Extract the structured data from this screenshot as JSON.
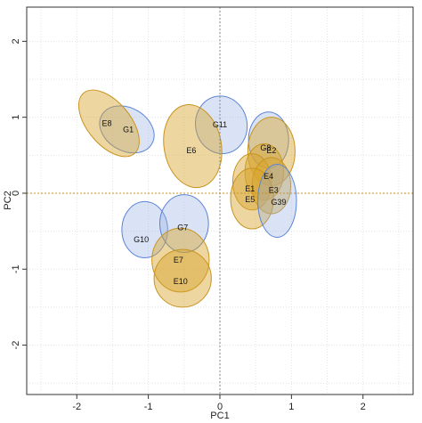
{
  "chart_data": {
    "type": "scatter",
    "title": "",
    "xlabel": "PC1",
    "ylabel": "PC2",
    "xlim": [
      -2.7,
      2.7
    ],
    "ylim": [
      -2.65,
      2.45
    ],
    "xticks": [
      -2,
      -1,
      0,
      1,
      2
    ],
    "yticks": [
      -2,
      -1,
      0,
      1,
      2
    ],
    "grid": true,
    "reference_lines": {
      "x": 0,
      "y": 0
    },
    "colors": {
      "blue_fill": "rgba(150,175,225,0.35)",
      "blue_stroke": "#5b84d6",
      "orange_fill": "rgba(215,165,45,0.45)",
      "orange_stroke": "#c8941f",
      "zero_x_line": "#888888",
      "zero_y_line": "#c8941f",
      "grid": "#e3e3e3"
    },
    "groups": [
      {
        "label": "G1",
        "color": "blue",
        "cx": -1.3,
        "cy": 0.84,
        "rx": 0.3,
        "ry": 0.38,
        "angle": 60
      },
      {
        "label": "E8",
        "color": "orange",
        "cx": -1.55,
        "cy": 0.92,
        "rx": 0.3,
        "ry": 0.52,
        "angle": 40
      },
      {
        "label": "G11",
        "color": "blue",
        "cx": 0.02,
        "cy": 0.9,
        "rx": 0.36,
        "ry": 0.38,
        "angle": 10
      },
      {
        "label": "E6",
        "color": "orange",
        "cx": -0.38,
        "cy": 0.62,
        "rx": 0.4,
        "ry": 0.55,
        "angle": 10
      },
      {
        "label": "G8",
        "color": "blue",
        "cx": 0.68,
        "cy": 0.7,
        "rx": 0.28,
        "ry": 0.37,
        "angle": 0
      },
      {
        "label": "E2",
        "color": "orange",
        "cx": 0.72,
        "cy": 0.55,
        "rx": 0.33,
        "ry": 0.45,
        "angle": 0
      },
      {
        "label": "E4",
        "color": "orange",
        "cx": 0.62,
        "cy": 0.28,
        "rx": 0.27,
        "ry": 0.37,
        "angle": 0
      },
      {
        "label": "E1",
        "color": "orange",
        "cx": 0.45,
        "cy": 0.15,
        "rx": 0.27,
        "ry": 0.37,
        "angle": 0
      },
      {
        "label": "E3",
        "color": "orange",
        "cx": 0.72,
        "cy": 0.1,
        "rx": 0.27,
        "ry": 0.37,
        "angle": 0
      },
      {
        "label": "E5",
        "color": "orange",
        "cx": 0.45,
        "cy": -0.07,
        "rx": 0.3,
        "ry": 0.4,
        "angle": 0
      },
      {
        "label": "G39",
        "color": "blue",
        "cx": 0.8,
        "cy": -0.1,
        "rx": 0.27,
        "ry": 0.48,
        "angle": 0
      },
      {
        "label": "G10",
        "color": "blue",
        "cx": -1.05,
        "cy": -0.48,
        "rx": 0.32,
        "ry": 0.37,
        "angle": 0
      },
      {
        "label": "G7",
        "color": "blue",
        "cx": -0.5,
        "cy": -0.4,
        "rx": 0.34,
        "ry": 0.38,
        "angle": 0
      },
      {
        "label": "E7",
        "color": "orange",
        "cx": -0.55,
        "cy": -0.88,
        "rx": 0.4,
        "ry": 0.42,
        "angle": 0
      },
      {
        "label": "E10",
        "color": "orange",
        "cx": -0.52,
        "cy": -1.12,
        "rx": 0.4,
        "ry": 0.38,
        "angle": 0
      }
    ],
    "labels": [
      {
        "text": "E8",
        "x": -1.58,
        "y": 0.92
      },
      {
        "text": "G1",
        "x": -1.28,
        "y": 0.84
      },
      {
        "text": "G11",
        "x": 0.0,
        "y": 0.9
      },
      {
        "text": "E6",
        "x": -0.4,
        "y": 0.56
      },
      {
        "text": "G8",
        "x": 0.64,
        "y": 0.6
      },
      {
        "text": "E2",
        "x": 0.72,
        "y": 0.56
      },
      {
        "text": "E4",
        "x": 0.68,
        "y": 0.22
      },
      {
        "text": "E1",
        "x": 0.42,
        "y": 0.06
      },
      {
        "text": "E3",
        "x": 0.75,
        "y": 0.04
      },
      {
        "text": "E5",
        "x": 0.42,
        "y": -0.08
      },
      {
        "text": "G39",
        "x": 0.82,
        "y": -0.12
      },
      {
        "text": "G10",
        "x": -1.1,
        "y": -0.61
      },
      {
        "text": "G7",
        "x": -0.52,
        "y": -0.45
      },
      {
        "text": "E7",
        "x": -0.58,
        "y": -0.88
      },
      {
        "text": "E10",
        "x": -0.55,
        "y": -1.16
      }
    ]
  }
}
